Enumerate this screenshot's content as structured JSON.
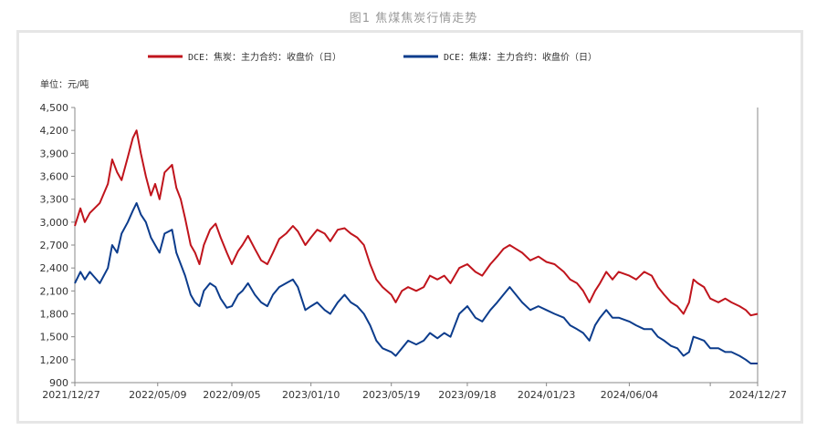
{
  "figure_title": "图1 焦煤焦炭行情走势",
  "colors": {
    "coke": "#c0141c",
    "coking_coal": "#0c3c8c",
    "axis": "#888888",
    "frame": "#e6e6e6"
  },
  "chart_data": {
    "type": "line",
    "title": "图1 焦煤焦炭行情走势",
    "unit_label": "单位：元/吨",
    "ylim": [
      900,
      4500
    ],
    "y_ticks": [
      900,
      1200,
      1500,
      1800,
      2100,
      2400,
      2700,
      3000,
      3300,
      3600,
      3900,
      4200,
      4500
    ],
    "y_tick_labels": [
      "900",
      "1,200",
      "1,500",
      "1,800",
      "2,100",
      "2,400",
      "2,700",
      "3,000",
      "3,300",
      "3,600",
      "3,900",
      "4,200",
      "4,500"
    ],
    "x_range": [
      "2021-12-27",
      "2024-12-27"
    ],
    "x_tick_dates": [
      "2021-12-27",
      "2022-05-09",
      "2022-09-05",
      "2023-01-10",
      "2023-05-19",
      "2023-09-18",
      "2024-01-23",
      "2024-06-04",
      "2024-10-12",
      "2024-12-27"
    ],
    "x_tick_labels": [
      "2021/12/27",
      "2022/05/09",
      "2022/09/05",
      "2023/01/10",
      "2023/05/19",
      "2023/09/18",
      "2024/01/23",
      "2024/06/04",
      "",
      "2024/12/27"
    ],
    "legend_position": "top-center",
    "grid": false,
    "series": [
      {
        "name": "DCE：焦炭：主力合约：收盘价（日）",
        "color": "#c0141c",
        "points": [
          [
            "2021-12-27",
            2950
          ],
          [
            "2022-01-05",
            3180
          ],
          [
            "2022-01-12",
            3000
          ],
          [
            "2022-01-20",
            3120
          ],
          [
            "2022-02-05",
            3250
          ],
          [
            "2022-02-18",
            3500
          ],
          [
            "2022-02-25",
            3820
          ],
          [
            "2022-03-05",
            3650
          ],
          [
            "2022-03-12",
            3550
          ],
          [
            "2022-03-22",
            3850
          ],
          [
            "2022-03-30",
            4100
          ],
          [
            "2022-04-05",
            4200
          ],
          [
            "2022-04-12",
            3900
          ],
          [
            "2022-04-20",
            3600
          ],
          [
            "2022-04-28",
            3350
          ],
          [
            "2022-05-05",
            3500
          ],
          [
            "2022-05-12",
            3300
          ],
          [
            "2022-05-20",
            3650
          ],
          [
            "2022-06-01",
            3750
          ],
          [
            "2022-06-08",
            3450
          ],
          [
            "2022-06-15",
            3300
          ],
          [
            "2022-06-22",
            3050
          ],
          [
            "2022-07-01",
            2700
          ],
          [
            "2022-07-08",
            2600
          ],
          [
            "2022-07-15",
            2450
          ],
          [
            "2022-07-22",
            2700
          ],
          [
            "2022-08-01",
            2900
          ],
          [
            "2022-08-10",
            2980
          ],
          [
            "2022-08-18",
            2800
          ],
          [
            "2022-08-28",
            2600
          ],
          [
            "2022-09-05",
            2450
          ],
          [
            "2022-09-15",
            2620
          ],
          [
            "2022-09-22",
            2700
          ],
          [
            "2022-10-01",
            2820
          ],
          [
            "2022-10-12",
            2650
          ],
          [
            "2022-10-22",
            2500
          ],
          [
            "2022-11-01",
            2450
          ],
          [
            "2022-11-10",
            2600
          ],
          [
            "2022-11-20",
            2780
          ],
          [
            "2022-12-01",
            2850
          ],
          [
            "2022-12-12",
            2950
          ],
          [
            "2022-12-20",
            2880
          ],
          [
            "2023-01-01",
            2700
          ],
          [
            "2023-01-10",
            2800
          ],
          [
            "2023-01-20",
            2900
          ],
          [
            "2023-02-01",
            2850
          ],
          [
            "2023-02-10",
            2750
          ],
          [
            "2023-02-22",
            2900
          ],
          [
            "2023-03-05",
            2920
          ],
          [
            "2023-03-15",
            2850
          ],
          [
            "2023-03-25",
            2800
          ],
          [
            "2023-04-05",
            2700
          ],
          [
            "2023-04-15",
            2450
          ],
          [
            "2023-04-25",
            2250
          ],
          [
            "2023-05-05",
            2150
          ],
          [
            "2023-05-19",
            2050
          ],
          [
            "2023-05-26",
            1950
          ],
          [
            "2023-06-05",
            2100
          ],
          [
            "2023-06-15",
            2150
          ],
          [
            "2023-06-28",
            2100
          ],
          [
            "2023-07-10",
            2150
          ],
          [
            "2023-07-20",
            2300
          ],
          [
            "2023-08-01",
            2250
          ],
          [
            "2023-08-12",
            2300
          ],
          [
            "2023-08-22",
            2200
          ],
          [
            "2023-09-05",
            2400
          ],
          [
            "2023-09-18",
            2450
          ],
          [
            "2023-10-01",
            2350
          ],
          [
            "2023-10-12",
            2300
          ],
          [
            "2023-10-25",
            2450
          ],
          [
            "2023-11-05",
            2550
          ],
          [
            "2023-11-15",
            2650
          ],
          [
            "2023-11-25",
            2700
          ],
          [
            "2023-12-05",
            2650
          ],
          [
            "2023-12-15",
            2600
          ],
          [
            "2023-12-28",
            2500
          ],
          [
            "2024-01-10",
            2550
          ],
          [
            "2024-01-23",
            2480
          ],
          [
            "2024-02-05",
            2450
          ],
          [
            "2024-02-20",
            2350
          ],
          [
            "2024-03-01",
            2250
          ],
          [
            "2024-03-12",
            2200
          ],
          [
            "2024-03-22",
            2100
          ],
          [
            "2024-04-01",
            1950
          ],
          [
            "2024-04-10",
            2100
          ],
          [
            "2024-04-18",
            2200
          ],
          [
            "2024-04-28",
            2350
          ],
          [
            "2024-05-08",
            2250
          ],
          [
            "2024-05-18",
            2350
          ],
          [
            "2024-06-04",
            2300
          ],
          [
            "2024-06-15",
            2250
          ],
          [
            "2024-06-28",
            2350
          ],
          [
            "2024-07-10",
            2300
          ],
          [
            "2024-07-20",
            2150
          ],
          [
            "2024-07-30",
            2050
          ],
          [
            "2024-08-10",
            1950
          ],
          [
            "2024-08-20",
            1900
          ],
          [
            "2024-08-30",
            1800
          ],
          [
            "2024-09-08",
            1950
          ],
          [
            "2024-09-15",
            2250
          ],
          [
            "2024-09-22",
            2200
          ],
          [
            "2024-10-02",
            2150
          ],
          [
            "2024-10-12",
            2000
          ],
          [
            "2024-10-25",
            1950
          ],
          [
            "2024-11-05",
            2000
          ],
          [
            "2024-11-15",
            1950
          ],
          [
            "2024-11-28",
            1900
          ],
          [
            "2024-12-08",
            1850
          ],
          [
            "2024-12-16",
            1780
          ],
          [
            "2024-12-27",
            1800
          ]
        ]
      },
      {
        "name": "DCE：焦煤：主力合约：收盘价（日）",
        "color": "#0c3c8c",
        "points": [
          [
            "2021-12-27",
            2200
          ],
          [
            "2022-01-05",
            2350
          ],
          [
            "2022-01-12",
            2250
          ],
          [
            "2022-01-20",
            2350
          ],
          [
            "2022-02-05",
            2200
          ],
          [
            "2022-02-18",
            2400
          ],
          [
            "2022-02-25",
            2700
          ],
          [
            "2022-03-05",
            2600
          ],
          [
            "2022-03-12",
            2850
          ],
          [
            "2022-03-22",
            3000
          ],
          [
            "2022-03-30",
            3150
          ],
          [
            "2022-04-05",
            3250
          ],
          [
            "2022-04-12",
            3100
          ],
          [
            "2022-04-20",
            3000
          ],
          [
            "2022-04-28",
            2800
          ],
          [
            "2022-05-05",
            2700
          ],
          [
            "2022-05-12",
            2600
          ],
          [
            "2022-05-20",
            2850
          ],
          [
            "2022-06-01",
            2900
          ],
          [
            "2022-06-08",
            2600
          ],
          [
            "2022-06-15",
            2450
          ],
          [
            "2022-06-22",
            2300
          ],
          [
            "2022-07-01",
            2050
          ],
          [
            "2022-07-08",
            1950
          ],
          [
            "2022-07-15",
            1900
          ],
          [
            "2022-07-22",
            2100
          ],
          [
            "2022-08-01",
            2200
          ],
          [
            "2022-08-10",
            2150
          ],
          [
            "2022-08-18",
            2000
          ],
          [
            "2022-08-28",
            1880
          ],
          [
            "2022-09-05",
            1900
          ],
          [
            "2022-09-15",
            2050
          ],
          [
            "2022-09-22",
            2100
          ],
          [
            "2022-10-01",
            2200
          ],
          [
            "2022-10-12",
            2050
          ],
          [
            "2022-10-22",
            1950
          ],
          [
            "2022-11-01",
            1900
          ],
          [
            "2022-11-10",
            2050
          ],
          [
            "2022-11-20",
            2150
          ],
          [
            "2022-12-01",
            2200
          ],
          [
            "2022-12-12",
            2250
          ],
          [
            "2022-12-20",
            2150
          ],
          [
            "2023-01-01",
            1850
          ],
          [
            "2023-01-10",
            1900
          ],
          [
            "2023-01-20",
            1950
          ],
          [
            "2023-02-01",
            1850
          ],
          [
            "2023-02-10",
            1800
          ],
          [
            "2023-02-22",
            1950
          ],
          [
            "2023-03-05",
            2050
          ],
          [
            "2023-03-15",
            1950
          ],
          [
            "2023-03-25",
            1900
          ],
          [
            "2023-04-05",
            1800
          ],
          [
            "2023-04-15",
            1650
          ],
          [
            "2023-04-25",
            1450
          ],
          [
            "2023-05-05",
            1350
          ],
          [
            "2023-05-19",
            1300
          ],
          [
            "2023-05-26",
            1250
          ],
          [
            "2023-06-05",
            1350
          ],
          [
            "2023-06-15",
            1450
          ],
          [
            "2023-06-28",
            1400
          ],
          [
            "2023-07-10",
            1450
          ],
          [
            "2023-07-20",
            1550
          ],
          [
            "2023-08-01",
            1480
          ],
          [
            "2023-08-12",
            1550
          ],
          [
            "2023-08-22",
            1500
          ],
          [
            "2023-09-05",
            1800
          ],
          [
            "2023-09-18",
            1900
          ],
          [
            "2023-10-01",
            1750
          ],
          [
            "2023-10-12",
            1700
          ],
          [
            "2023-10-25",
            1850
          ],
          [
            "2023-11-05",
            1950
          ],
          [
            "2023-11-15",
            2050
          ],
          [
            "2023-11-25",
            2150
          ],
          [
            "2023-12-05",
            2050
          ],
          [
            "2023-12-15",
            1950
          ],
          [
            "2023-12-28",
            1850
          ],
          [
            "2024-01-10",
            1900
          ],
          [
            "2024-01-23",
            1850
          ],
          [
            "2024-02-05",
            1800
          ],
          [
            "2024-02-20",
            1750
          ],
          [
            "2024-03-01",
            1650
          ],
          [
            "2024-03-12",
            1600
          ],
          [
            "2024-03-22",
            1550
          ],
          [
            "2024-04-01",
            1450
          ],
          [
            "2024-04-10",
            1650
          ],
          [
            "2024-04-18",
            1750
          ],
          [
            "2024-04-28",
            1850
          ],
          [
            "2024-05-08",
            1750
          ],
          [
            "2024-05-18",
            1750
          ],
          [
            "2024-06-04",
            1700
          ],
          [
            "2024-06-15",
            1650
          ],
          [
            "2024-06-28",
            1600
          ],
          [
            "2024-07-10",
            1600
          ],
          [
            "2024-07-20",
            1500
          ],
          [
            "2024-07-30",
            1450
          ],
          [
            "2024-08-10",
            1380
          ],
          [
            "2024-08-20",
            1350
          ],
          [
            "2024-08-30",
            1250
          ],
          [
            "2024-09-08",
            1300
          ],
          [
            "2024-09-15",
            1500
          ],
          [
            "2024-09-22",
            1480
          ],
          [
            "2024-10-02",
            1450
          ],
          [
            "2024-10-12",
            1350
          ],
          [
            "2024-10-25",
            1350
          ],
          [
            "2024-11-05",
            1300
          ],
          [
            "2024-11-15",
            1300
          ],
          [
            "2024-11-28",
            1250
          ],
          [
            "2024-12-08",
            1200
          ],
          [
            "2024-12-16",
            1150
          ],
          [
            "2024-12-27",
            1150
          ]
        ]
      }
    ]
  }
}
